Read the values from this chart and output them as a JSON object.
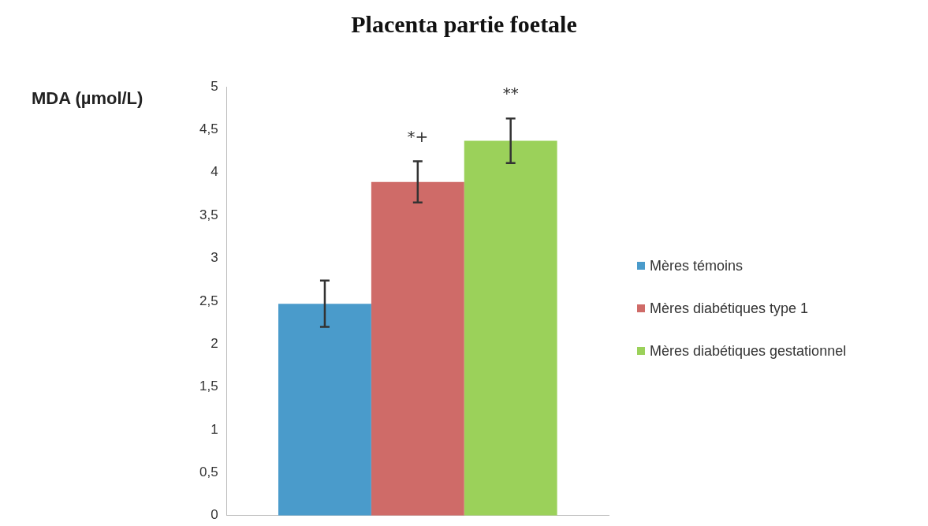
{
  "chart_data": {
    "type": "bar",
    "title": "Placenta partie foetale",
    "ylabel": "MDA (µmol/L)",
    "categories": [
      null
    ],
    "series": [
      {
        "name": "Mères témoins",
        "color": "#4a9bcb",
        "values": [
          2.47
        ],
        "errors": [
          0.27
        ]
      },
      {
        "name": "Mères diabétiques type 1",
        "color": "#cf6b68",
        "values": [
          3.89
        ],
        "errors": [
          0.24
        ]
      },
      {
        "name": "Mères diabétiques gestationnel",
        "color": "#9bd15a",
        "values": [
          4.37
        ],
        "errors": [
          0.26
        ]
      }
    ],
    "ylim": [
      0,
      5
    ],
    "yticks": [
      {
        "value": 0,
        "label": "0"
      },
      {
        "value": 0.5,
        "label": "0,5"
      },
      {
        "value": 1,
        "label": "1"
      },
      {
        "value": 1.5,
        "label": "1,5"
      },
      {
        "value": 2,
        "label": "2"
      },
      {
        "value": 2.5,
        "label": "2,5"
      },
      {
        "value": 3,
        "label": "3"
      },
      {
        "value": 3.5,
        "label": "3,5"
      },
      {
        "value": 4,
        "label": "4"
      },
      {
        "value": 4.5,
        "label": "4,5"
      },
      {
        "value": 5,
        "label": "5"
      }
    ],
    "annotations": [
      "*+",
      "**"
    ],
    "legend": "right",
    "grid": false
  }
}
